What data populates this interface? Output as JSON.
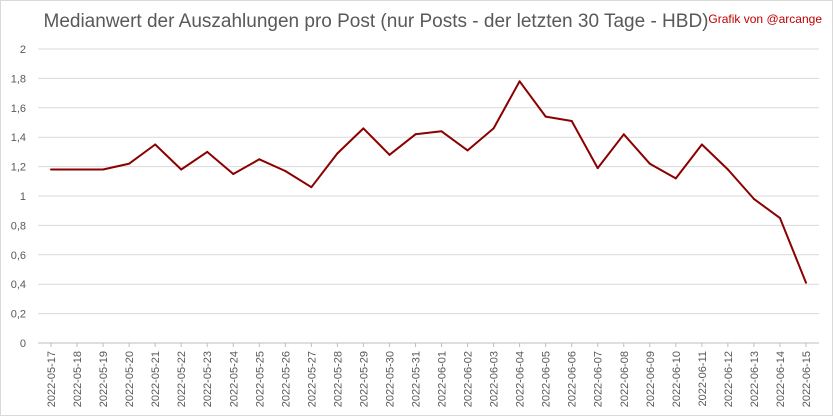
{
  "chart_data": {
    "type": "line",
    "title": "Medianwert der Auszahlungen pro Post (nur Posts - der letzten 30 Tage - HBD)",
    "credit": "Grafik von @arcange",
    "x": [
      "2022-05-17",
      "2022-05-18",
      "2022-05-19",
      "2022-05-20",
      "2022-05-21",
      "2022-05-22",
      "2022-05-23",
      "2022-05-24",
      "2022-05-25",
      "2022-05-26",
      "2022-05-27",
      "2022-05-28",
      "2022-05-29",
      "2022-05-30",
      "2022-05-31",
      "2022-06-01",
      "2022-06-02",
      "2022-06-03",
      "2022-06-04",
      "2022-06-05",
      "2022-06-06",
      "2022-06-07",
      "2022-06-08",
      "2022-06-09",
      "2022-06-10",
      "2022-06-11",
      "2022-06-12",
      "2022-06-13",
      "2022-06-14",
      "2022-06-15"
    ],
    "series": [
      {
        "values": [
          1.18,
          1.18,
          1.18,
          1.22,
          1.35,
          1.18,
          1.3,
          1.15,
          1.25,
          1.17,
          1.06,
          1.29,
          1.46,
          1.28,
          1.42,
          1.44,
          1.31,
          1.46,
          1.78,
          1.54,
          1.51,
          1.19,
          1.42,
          1.22,
          1.12,
          1.35,
          1.18,
          0.98,
          0.85,
          0.41
        ],
        "color": "#8b0000"
      }
    ],
    "yticks": [
      "0",
      "0,2",
      "0,4",
      "0,6",
      "0,8",
      "1",
      "1,2",
      "1,4",
      "1,6",
      "1,8",
      "2"
    ],
    "ylim": [
      0,
      2
    ],
    "grid": true,
    "legend": "none"
  }
}
